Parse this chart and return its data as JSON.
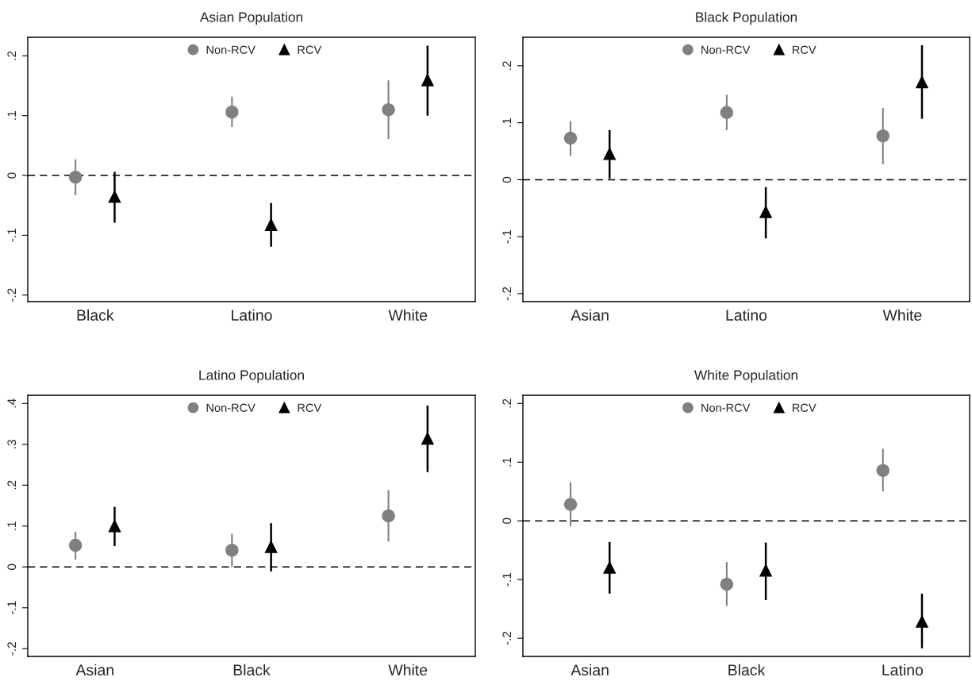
{
  "chart_data": [
    {
      "type": "scatter",
      "title": "Asian Population",
      "categories": [
        "Black",
        "Latino",
        "White"
      ],
      "ylim": [
        -0.211,
        0.231
      ],
      "yticks": [
        {
          "value": -0.2,
          "label": "-.2"
        },
        {
          "value": -0.1,
          "label": "-.1"
        },
        0,
        {
          "value": 0.1,
          "label": ".1"
        },
        {
          "value": 0.2,
          "label": ".2"
        }
      ],
      "legend": "top",
      "ref_lines": [
        {
          "axis": "y",
          "value": 0,
          "color": "#000000",
          "line_style": "dashed"
        }
      ],
      "series": [
        {
          "name": "Non-RCV",
          "color": "#808080",
          "marker": "circle",
          "values": [
            -0.003,
            0.106,
            0.11
          ],
          "errors": [
            [
              -0.033,
              0.027
            ],
            [
              0.081,
              0.132
            ],
            [
              0.061,
              0.159
            ]
          ]
        },
        {
          "name": "RCV",
          "color": "#000000",
          "marker": "triangle",
          "values": [
            -0.035,
            -0.082,
            0.16
          ],
          "errors": [
            [
              -0.079,
              0.006
            ],
            [
              -0.119,
              -0.046
            ],
            [
              0.1,
              0.217
            ]
          ]
        }
      ]
    },
    {
      "type": "scatter",
      "title": "Black Population",
      "categories": [
        "Asian",
        "Latino",
        "White"
      ],
      "ylim": [
        -0.214,
        0.25
      ],
      "yticks": [
        {
          "value": -0.2,
          "label": "-.2"
        },
        {
          "value": -0.1,
          "label": "-.1"
        },
        0,
        {
          "value": 0.1,
          "label": ".1"
        },
        {
          "value": 0.2,
          "label": ".2"
        }
      ],
      "legend": "top",
      "ref_lines": [
        {
          "axis": "y",
          "value": 0,
          "color": "#000000",
          "line_style": "dashed"
        }
      ],
      "series": [
        {
          "name": "Non-RCV",
          "color": "#808080",
          "marker": "circle",
          "values": [
            0.073,
            0.118,
            0.077
          ],
          "errors": [
            [
              0.042,
              0.103
            ],
            [
              0.087,
              0.149
            ],
            [
              0.027,
              0.126
            ]
          ]
        },
        {
          "name": "RCV",
          "color": "#000000",
          "marker": "triangle",
          "values": [
            0.046,
            -0.056,
            0.172
          ],
          "errors": [
            [
              0.002,
              0.087
            ],
            [
              -0.103,
              -0.013
            ],
            [
              0.107,
              0.236
            ]
          ]
        }
      ]
    },
    {
      "type": "scatter",
      "title": "Latino Population",
      "categories": [
        "Asian",
        "Black",
        "White"
      ],
      "ylim": [
        -0.219,
        0.42
      ],
      "yticks": [
        {
          "value": -0.2,
          "label": "-.2"
        },
        {
          "value": -0.1,
          "label": "-.1"
        },
        0,
        {
          "value": 0.1,
          "label": ".1"
        },
        {
          "value": 0.2,
          "label": ".2"
        },
        {
          "value": 0.3,
          "label": ".3"
        },
        {
          "value": 0.4,
          "label": ".4"
        }
      ],
      "legend": "top",
      "ref_lines": [
        {
          "axis": "y",
          "value": 0,
          "color": "#000000",
          "line_style": "dashed"
        }
      ],
      "series": [
        {
          "name": "Non-RCV",
          "color": "#808080",
          "marker": "circle",
          "values": [
            0.053,
            0.041,
            0.125
          ],
          "errors": [
            [
              0.018,
              0.086
            ],
            [
              0.0,
              0.081
            ],
            [
              0.062,
              0.188
            ]
          ]
        },
        {
          "name": "RCV",
          "color": "#000000",
          "marker": "triangle",
          "values": [
            0.101,
            0.05,
            0.315
          ],
          "errors": [
            [
              0.051,
              0.147
            ],
            [
              -0.011,
              0.107
            ],
            [
              0.232,
              0.395
            ]
          ]
        }
      ]
    },
    {
      "type": "scatter",
      "title": "White Population",
      "categories": [
        "Asian",
        "Black",
        "Latino"
      ],
      "ylim": [
        -0.231,
        0.214
      ],
      "yticks": [
        {
          "value": -0.2,
          "label": "-.2"
        },
        {
          "value": -0.1,
          "label": "-.1"
        },
        0,
        {
          "value": 0.1,
          "label": ".1"
        },
        {
          "value": 0.2,
          "label": ".2"
        }
      ],
      "legend": "top",
      "ref_lines": [
        {
          "axis": "y",
          "value": 0,
          "color": "#000000",
          "line_style": "dashed"
        }
      ],
      "series": [
        {
          "name": "Non-RCV",
          "color": "#808080",
          "marker": "circle",
          "values": [
            0.028,
            -0.108,
            0.086
          ],
          "errors": [
            [
              -0.009,
              0.066
            ],
            [
              -0.145,
              -0.07
            ],
            [
              0.05,
              0.123
            ]
          ]
        },
        {
          "name": "RCV",
          "color": "#000000",
          "marker": "triangle",
          "values": [
            -0.079,
            -0.084,
            -0.171
          ],
          "errors": [
            [
              -0.124,
              -0.036
            ],
            [
              -0.135,
              -0.037
            ],
            [
              -0.217,
              -0.124
            ]
          ]
        }
      ]
    }
  ]
}
